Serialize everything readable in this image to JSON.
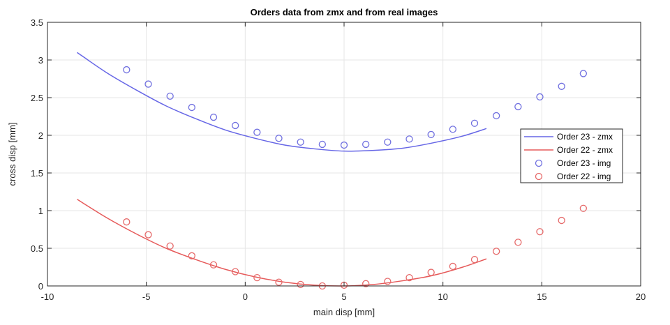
{
  "chart_data": {
    "type": "line",
    "title": "Orders data from zmx and from real images",
    "xlabel": "main disp [mm]",
    "ylabel": "cross disp [mm]",
    "xlim": [
      -10,
      20
    ],
    "ylim": [
      0,
      3.5
    ],
    "xticks": [
      -10,
      -5,
      0,
      5,
      10,
      15,
      20
    ],
    "xtick_labels": [
      "-10",
      "-5",
      "0",
      "5",
      "10",
      "15",
      "20"
    ],
    "yticks": [
      0,
      0.5,
      1,
      1.5,
      2,
      2.5,
      3,
      3.5
    ],
    "ytick_labels": [
      "0",
      "0.5",
      "1",
      "1.5",
      "2",
      "2.5",
      "3",
      "3.5"
    ],
    "grid": true,
    "legend_position": "right",
    "series": [
      {
        "name": "Order 23 - zmx",
        "style": "line",
        "color": "#6666e6",
        "x": [
          -8.5,
          -7,
          -5.5,
          -4,
          -2.5,
          -1,
          0.5,
          2,
          3.5,
          5,
          6.5,
          8,
          9.5,
          11,
          12.2
        ],
        "y": [
          3.1,
          2.83,
          2.6,
          2.39,
          2.22,
          2.07,
          1.96,
          1.87,
          1.82,
          1.79,
          1.8,
          1.83,
          1.9,
          1.99,
          2.09
        ]
      },
      {
        "name": "Order 22 - zmx",
        "style": "line",
        "color": "#e65a5a",
        "x": [
          -8.5,
          -7,
          -5.5,
          -4,
          -2.5,
          -1,
          0.5,
          2,
          3.5,
          5,
          6.5,
          8,
          9.5,
          11,
          12.2
        ],
        "y": [
          1.15,
          0.905,
          0.69,
          0.5,
          0.35,
          0.22,
          0.12,
          0.05,
          0.01,
          0.0,
          0.02,
          0.07,
          0.14,
          0.25,
          0.36
        ]
      },
      {
        "name": "Order 23 - img",
        "style": "marker",
        "color": "#7070e0",
        "x": [
          -6.0,
          -4.9,
          -3.8,
          -2.7,
          -1.6,
          -0.5,
          0.6,
          1.7,
          2.8,
          3.9,
          5.0,
          6.1,
          7.2,
          8.3,
          9.4,
          10.5,
          11.6,
          12.7,
          13.8,
          14.9,
          16.0,
          17.1
        ],
        "y": [
          2.87,
          2.68,
          2.52,
          2.37,
          2.24,
          2.13,
          2.04,
          1.96,
          1.91,
          1.88,
          1.87,
          1.88,
          1.91,
          1.95,
          2.01,
          2.08,
          2.16,
          2.26,
          2.38,
          2.51,
          2.65,
          2.82
        ]
      },
      {
        "name": "Order 22 - img",
        "style": "marker",
        "color": "#e66a6a",
        "x": [
          -6.0,
          -4.9,
          -3.8,
          -2.7,
          -1.6,
          -0.5,
          0.6,
          1.7,
          2.8,
          3.9,
          5.0,
          6.1,
          7.2,
          8.3,
          9.4,
          10.5,
          11.6,
          12.7,
          13.8,
          14.9,
          16.0,
          17.1
        ],
        "y": [
          0.85,
          0.68,
          0.53,
          0.4,
          0.28,
          0.19,
          0.11,
          0.05,
          0.02,
          0.0,
          0.01,
          0.03,
          0.06,
          0.11,
          0.18,
          0.26,
          0.35,
          0.46,
          0.58,
          0.72,
          0.87,
          1.03
        ]
      }
    ]
  }
}
